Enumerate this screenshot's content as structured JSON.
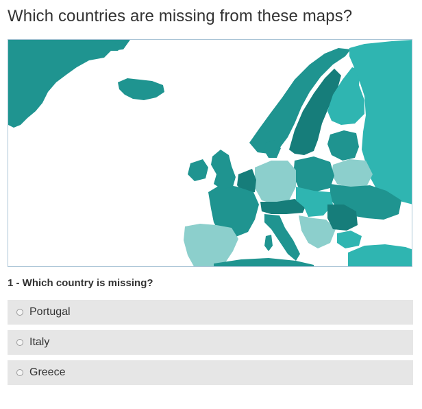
{
  "page": {
    "title": "Which countries are missing from these maps?"
  },
  "map": {
    "colors": {
      "sea": "#ffffff",
      "land": "#1f9490",
      "land_dark": "#167d7a",
      "land_light": "#2fb5b1",
      "highlight": "#8ccfcc",
      "border": "#a9c4d6"
    }
  },
  "quiz": {
    "question": "1 - Which country is missing?",
    "options": [
      "Portugal",
      "Italy",
      "Greece"
    ]
  }
}
